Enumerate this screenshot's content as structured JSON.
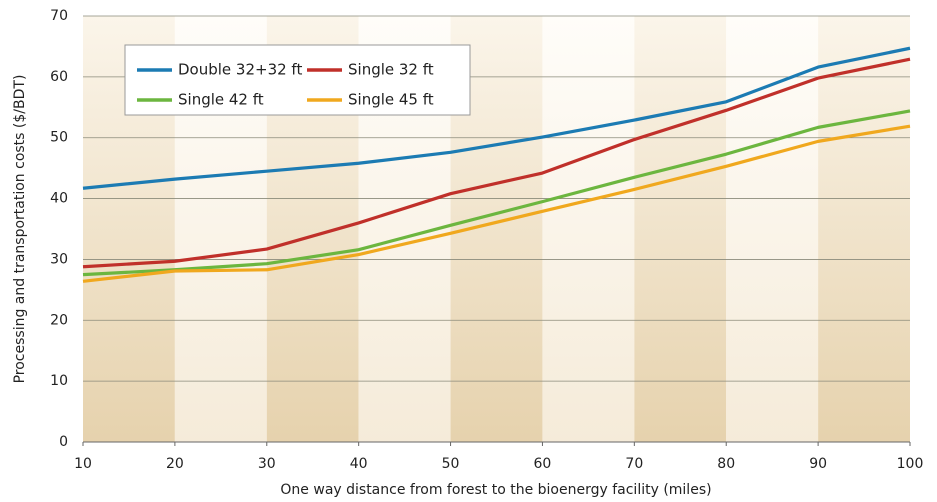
{
  "chart_data": {
    "type": "line",
    "x_label": "One way distance from forest to the bioenergy facility (miles)",
    "y_label": "Processing and transportation costs ($/BDT)",
    "x": [
      10,
      20,
      30,
      40,
      50,
      60,
      70,
      80,
      90,
      100
    ],
    "series": [
      {
        "name": "Double 32+32 ft",
        "color": "#1c7bb3",
        "values": [
          41.7,
          43.2,
          44.5,
          45.8,
          47.6,
          50.1,
          52.9,
          55.9,
          61.6,
          64.7
        ]
      },
      {
        "name": "Single 32 ft",
        "color": "#c0302a",
        "values": [
          28.8,
          29.7,
          31.7,
          36.0,
          40.8,
          44.2,
          49.7,
          54.5,
          59.8,
          62.9
        ]
      },
      {
        "name": "Single 42 ft",
        "color": "#6cb63f",
        "values": [
          27.5,
          28.3,
          29.3,
          31.6,
          35.6,
          39.5,
          43.5,
          47.3,
          51.7,
          54.4
        ]
      },
      {
        "name": "Single 45 ft",
        "color": "#f0a81e",
        "values": [
          26.4,
          28.1,
          28.3,
          30.8,
          34.3,
          37.9,
          41.5,
          45.3,
          49.4,
          51.9
        ]
      }
    ],
    "xlim": [
      10,
      100
    ],
    "xticks": [
      10,
      20,
      30,
      40,
      50,
      60,
      70,
      80,
      90,
      100
    ],
    "ylim": [
      0,
      70
    ],
    "yticks": [
      0,
      10,
      20,
      30,
      40,
      50,
      60,
      70
    ],
    "grid": true,
    "legend": "upper left"
  }
}
